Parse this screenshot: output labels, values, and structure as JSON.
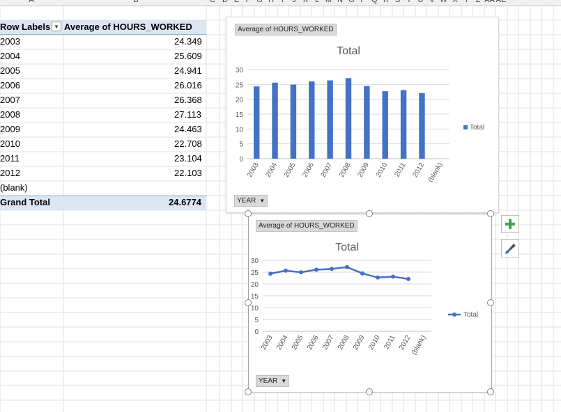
{
  "column_letters": [
    "A",
    "B",
    "C",
    "D",
    "E",
    "F",
    "G",
    "H",
    "I",
    "J",
    "K",
    "L",
    "M",
    "N",
    "O",
    "P",
    "Q",
    "R",
    "S",
    "T",
    "U",
    "V",
    "W",
    "X",
    "Y",
    "Z",
    "AA",
    "AE"
  ],
  "pivot": {
    "header_row_labels": "Row Labels",
    "header_value": "Average of HOURS_WORKED",
    "rows": [
      {
        "label": "2003",
        "value": "24.349"
      },
      {
        "label": "2004",
        "value": "25.609"
      },
      {
        "label": "2005",
        "value": "24.941"
      },
      {
        "label": "2006",
        "value": "26.016"
      },
      {
        "label": "2007",
        "value": "26.368"
      },
      {
        "label": "2008",
        "value": "27.113"
      },
      {
        "label": "2009",
        "value": "24.463"
      },
      {
        "label": "2010",
        "value": "22.708"
      },
      {
        "label": "2011",
        "value": "23.104"
      },
      {
        "label": "2012",
        "value": "22.103"
      },
      {
        "label": "(blank)",
        "value": ""
      }
    ],
    "grand_total_label": "Grand Total",
    "grand_total_value": "24.6774"
  },
  "charts": [
    {
      "value_chip": "Average of HOURS_WORKED",
      "axis_chip": "YEAR",
      "title": "Total",
      "legend": "Total"
    },
    {
      "value_chip": "Average of HOURS_WORKED",
      "axis_chip": "YEAR",
      "title": "Total",
      "legend": "Total"
    }
  ],
  "chart_data": [
    {
      "type": "bar",
      "title": "Total",
      "categories": [
        "2003",
        "2004",
        "2005",
        "2006",
        "2007",
        "2008",
        "2009",
        "2010",
        "2011",
        "2012",
        "(blank)"
      ],
      "series": [
        {
          "name": "Total",
          "values": [
            24.349,
            25.609,
            24.941,
            26.016,
            26.368,
            27.113,
            24.463,
            22.708,
            23.104,
            22.103,
            null
          ]
        }
      ],
      "ylim": [
        0,
        30
      ],
      "yticks": [
        0,
        5,
        10,
        15,
        20,
        25,
        30
      ],
      "grid": true,
      "legend": "right",
      "color": "#4472c4"
    },
    {
      "type": "line",
      "title": "Total",
      "categories": [
        "2003",
        "2004",
        "2005",
        "2006",
        "2007",
        "2008",
        "2009",
        "2010",
        "2011",
        "2012",
        "(blank)"
      ],
      "series": [
        {
          "name": "Total",
          "values": [
            24.349,
            25.609,
            24.941,
            26.016,
            26.368,
            27.113,
            24.463,
            22.708,
            23.104,
            22.103,
            null
          ]
        }
      ],
      "ylim": [
        0,
        30
      ],
      "yticks": [
        0,
        5,
        10,
        15,
        20,
        25,
        30
      ],
      "grid": true,
      "legend": "right",
      "color": "#4472c4"
    }
  ],
  "side_buttons": {
    "add": "chart-elements-icon",
    "style": "chart-styles-icon"
  },
  "colors": {
    "accent": "#4472c4",
    "pivot_header": "#dce6f1",
    "pivot_border": "#95b3d7"
  }
}
